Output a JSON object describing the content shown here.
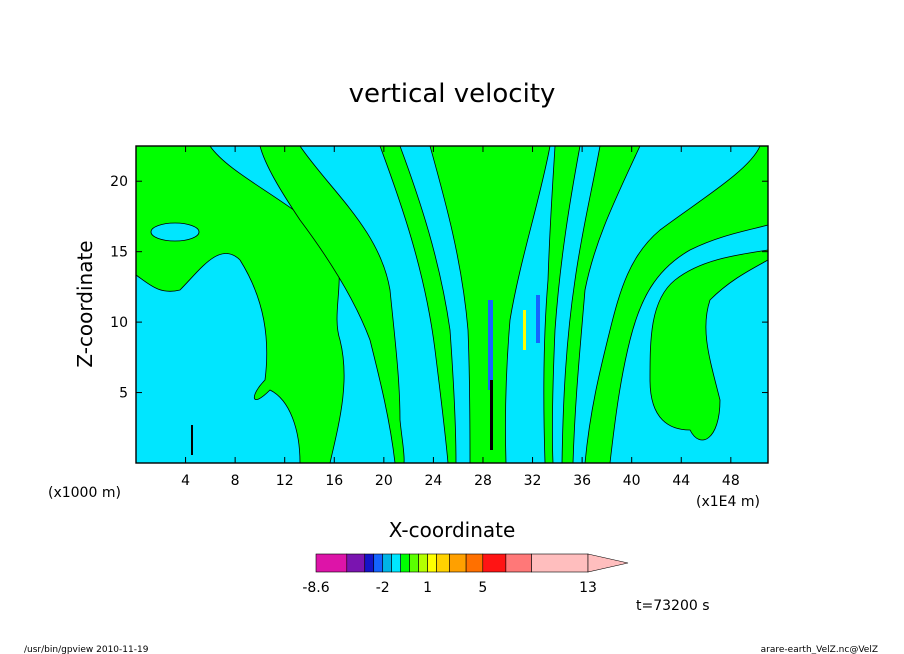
{
  "chart_data": {
    "type": "contour",
    "title": "vertical velocity",
    "xlabel": "X-coordinate",
    "ylabel": "Z-coordinate",
    "x_unit_left": "(x1000 m)",
    "x_unit_right": "(x1E4 m)",
    "x_ticks": [
      "4",
      "8",
      "12",
      "16",
      "20",
      "24",
      "28",
      "32",
      "36",
      "40",
      "44",
      "48"
    ],
    "y_ticks": [
      "5",
      "10",
      "15",
      "20"
    ],
    "xlim": [
      0,
      51
    ],
    "ylim": [
      0,
      22.5
    ],
    "levels": [
      -8.6,
      -7,
      -5,
      -3,
      -2,
      -1,
      -0.5,
      0,
      0.5,
      1,
      1.5,
      2,
      3,
      5,
      7,
      10,
      13,
      17
    ],
    "level_labels": [
      "-8.6",
      "-2",
      "1",
      "5",
      "13"
    ],
    "level_label_values": [
      -8.6,
      -2,
      1,
      5,
      13
    ],
    "colors": [
      "#dd14a8",
      "#7a14b0",
      "#1414c8",
      "#1464ff",
      "#00b4e6",
      "#00e6ff",
      "#00ff00",
      "#5aff00",
      "#b4ff00",
      "#ffff00",
      "#ffd200",
      "#ffa000",
      "#ff7000",
      "#ff1414",
      "#ff7878",
      "#ffbebe"
    ],
    "background_colors": {
      "cyan": "#00e6ff",
      "green": "#00ff00",
      "blue": "#1464ff"
    }
  },
  "annotations": {
    "time": "t=73200 s",
    "footer_left": "/usr/bin/gpview  2010-11-19",
    "footer_right": "arare-earth_VelZ.nc@VelZ"
  }
}
